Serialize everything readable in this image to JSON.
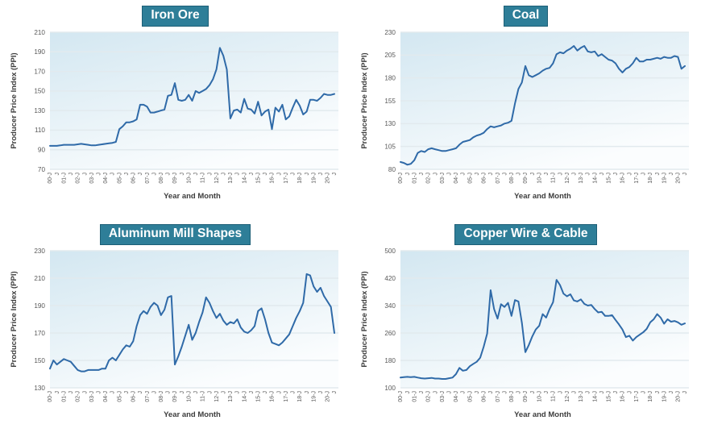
{
  "style": {
    "badge_background": "#2e7e98",
    "badge_border": "#1d5f77",
    "badge_text_color": "#ffffff",
    "line_color": "#2f6aa8",
    "plot_gradient_top": "#d3e7f1",
    "plot_gradient_mid": "#e9f3f8",
    "plot_gradient_bottom": "#fbfdfe",
    "gridline_color": "#e2eaee",
    "tick_text_color": "#595959",
    "axis_title_color": "#3d3d3d"
  },
  "x_axis": {
    "tick_labels": [
      "00-J",
      "J",
      "01-J",
      "J",
      "02-J",
      "J",
      "03-J",
      "J",
      "04-J",
      "J",
      "05-J",
      "J",
      "06-J",
      "J",
      "07-J",
      "J",
      "08-J",
      "J",
      "09-J",
      "J",
      "10-J",
      "J",
      "11-J",
      "J",
      "12-J",
      "J",
      "13-J",
      "J",
      "14-J",
      "J",
      "15-J",
      "J",
      "16-J",
      "J",
      "17-J",
      "J",
      "18-J",
      "J",
      "19-J",
      "J",
      "20-J",
      "J"
    ]
  },
  "chart_data": [
    {
      "type": "line",
      "title": "Iron Ore",
      "xlabel": "Year and Month",
      "ylabel": "Producer Price Index (PPI)",
      "ylim": [
        70,
        210
      ],
      "yticks": [
        210,
        190,
        170,
        150,
        130,
        110,
        90,
        70
      ],
      "x_start": "2000-Jan",
      "x_end": "2020-Jul",
      "points_per_year": 4,
      "grid": true,
      "legend": "none",
      "values": [
        94,
        94,
        94,
        94.5,
        95,
        95,
        95,
        95,
        95.5,
        96,
        95.5,
        95,
        94.5,
        94.5,
        95,
        95.5,
        96,
        96.5,
        97,
        98,
        111,
        114,
        118,
        118,
        119,
        121,
        136,
        136,
        134,
        128,
        128,
        129,
        130,
        131,
        145,
        146,
        158,
        141,
        140,
        141,
        146,
        140,
        150,
        148,
        150,
        152,
        156,
        162,
        172,
        194,
        186,
        172,
        122,
        130,
        131,
        128,
        142,
        132,
        131,
        127,
        139,
        125,
        129,
        131,
        111,
        133,
        129,
        136,
        121,
        124,
        133,
        141,
        135,
        126,
        129,
        141,
        141,
        140,
        143,
        147,
        146,
        146,
        147
      ]
    },
    {
      "type": "line",
      "title": "Coal",
      "xlabel": "Year and Month",
      "ylabel": "Producer Price Index (PPI)",
      "ylim": [
        80,
        230
      ],
      "yticks": [
        230,
        205,
        180,
        155,
        130,
        105,
        80
      ],
      "x_start": "2000-Jan",
      "x_end": "2020-Jul",
      "points_per_year": 4,
      "grid": true,
      "legend": "none",
      "values": [
        88,
        87,
        85,
        86,
        90,
        98,
        100,
        99,
        102,
        103,
        102,
        101,
        100,
        100,
        101,
        102,
        103,
        107,
        110,
        111,
        112,
        115,
        117,
        118,
        120,
        124,
        127,
        126,
        127,
        128,
        130,
        131,
        133,
        152,
        168,
        175,
        193,
        183,
        181,
        183,
        185,
        188,
        190,
        191,
        196,
        206,
        208,
        207,
        210,
        212,
        215,
        210,
        213,
        215,
        209,
        208,
        209,
        204,
        206,
        203,
        200,
        199,
        196,
        190,
        186,
        190,
        192,
        196,
        202,
        198,
        198,
        200,
        200,
        201,
        202,
        201,
        203,
        202,
        202,
        204,
        203,
        190,
        193
      ]
    },
    {
      "type": "line",
      "title": "Aluminum Mill Shapes",
      "xlabel": "Year and Month",
      "ylabel": "Producer Price Index (PPI)",
      "ylim": [
        130,
        230
      ],
      "yticks": [
        230,
        210,
        190,
        170,
        150,
        130
      ],
      "x_start": "2000-Jan",
      "x_end": "2020-Jul",
      "points_per_year": 4,
      "grid": true,
      "legend": "none",
      "values": [
        144,
        150,
        147,
        149,
        151,
        150,
        149,
        146,
        143,
        142,
        142,
        143,
        143,
        143,
        143,
        144,
        144,
        150,
        152,
        150,
        154,
        158,
        161,
        160,
        164,
        175,
        183,
        186,
        184,
        189,
        192,
        190,
        183,
        187,
        196,
        197,
        147,
        153,
        160,
        168,
        176,
        165,
        170,
        178,
        185,
        196,
        192,
        186,
        181,
        184,
        179,
        176,
        178,
        177,
        180,
        174,
        171,
        170,
        172,
        175,
        186,
        188,
        180,
        170,
        163,
        162,
        161,
        163,
        166,
        169,
        175,
        181,
        186,
        192,
        213,
        212,
        204,
        200,
        203,
        197,
        193,
        189,
        170
      ]
    },
    {
      "type": "line",
      "title": "Copper Wire & Cable",
      "xlabel": "Year and Month",
      "ylabel": "Producer Price Index (PPI)",
      "ylim": [
        100,
        500
      ],
      "yticks": [
        500,
        420,
        340,
        260,
        180,
        100
      ],
      "x_start": "2000-Jan",
      "x_end": "2020-Jul",
      "points_per_year": 4,
      "grid": true,
      "legend": "none",
      "values": [
        130,
        131,
        132,
        131,
        132,
        130,
        128,
        127,
        128,
        129,
        127,
        127,
        126,
        126,
        128,
        130,
        140,
        158,
        150,
        152,
        163,
        170,
        176,
        188,
        220,
        258,
        385,
        330,
        302,
        344,
        336,
        348,
        310,
        356,
        352,
        290,
        204,
        225,
        250,
        270,
        281,
        315,
        305,
        330,
        350,
        415,
        400,
        375,
        367,
        373,
        355,
        352,
        358,
        345,
        340,
        342,
        330,
        320,
        322,
        310,
        310,
        312,
        298,
        285,
        270,
        248,
        252,
        238,
        248,
        255,
        262,
        272,
        291,
        300,
        315,
        305,
        287,
        300,
        293,
        295,
        291,
        284,
        288
      ]
    }
  ]
}
